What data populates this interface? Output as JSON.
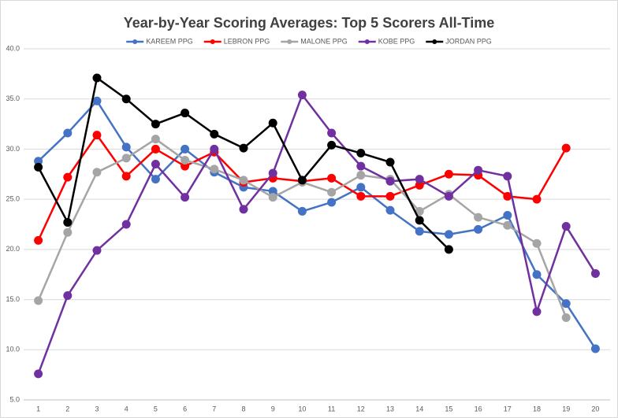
{
  "chart_data": {
    "type": "line",
    "title": "Year-by-Year Scoring Averages: Top 5 Scorers All-Time",
    "categories": [
      "1",
      "2",
      "3",
      "4",
      "5",
      "6",
      "7",
      "8",
      "9",
      "10",
      "11",
      "12",
      "13",
      "14",
      "15",
      "16",
      "17",
      "18",
      "19",
      "20"
    ],
    "series": [
      {
        "name": "KAREEM PPG",
        "color": "#4472c4",
        "values": [
          28.8,
          31.6,
          34.8,
          30.2,
          27.0,
          30.0,
          27.7,
          26.2,
          25.8,
          23.8,
          24.7,
          26.2,
          23.9,
          21.8,
          21.5,
          22.0,
          23.4,
          17.5,
          14.6,
          10.1
        ]
      },
      {
        "name": "LEBRON PPG",
        "color": "#ff0000",
        "values": [
          20.9,
          27.2,
          31.4,
          27.3,
          30.0,
          28.3,
          29.7,
          26.7,
          27.1,
          26.8,
          27.1,
          25.3,
          25.3,
          26.4,
          27.5,
          27.4,
          25.3,
          25.0,
          30.1,
          null
        ]
      },
      {
        "name": "MALONE PPG",
        "color": "#a5a5a5",
        "values": [
          14.9,
          21.7,
          27.7,
          29.1,
          31.0,
          28.9,
          28.0,
          26.9,
          25.2,
          26.7,
          25.7,
          27.4,
          27.0,
          23.8,
          25.5,
          23.2,
          22.4,
          20.6,
          13.2,
          null
        ]
      },
      {
        "name": "KOBE PPG",
        "color": "#7030a0",
        "values": [
          7.6,
          15.4,
          19.9,
          22.5,
          28.5,
          25.2,
          30.0,
          24.0,
          27.6,
          35.4,
          31.6,
          28.3,
          26.8,
          27.0,
          25.3,
          27.9,
          27.3,
          13.8,
          22.3,
          17.6
        ]
      },
      {
        "name": "JORDAN PPG",
        "color": "#000000",
        "values": [
          28.2,
          22.7,
          37.1,
          35.0,
          32.5,
          33.6,
          31.5,
          30.1,
          32.6,
          26.9,
          30.4,
          29.6,
          28.7,
          22.9,
          20.0,
          null,
          null,
          null,
          null,
          null
        ]
      }
    ],
    "ylim": [
      5,
      40
    ],
    "yticks": [
      {
        "value": 5,
        "label": "5.0"
      },
      {
        "value": 10,
        "label": "10.0"
      },
      {
        "value": 15,
        "label": "15.0"
      },
      {
        "value": 20,
        "label": "20.0"
      },
      {
        "value": 25,
        "label": "25.0"
      },
      {
        "value": 30,
        "label": "30.0"
      },
      {
        "value": 35,
        "label": "35.0"
      },
      {
        "value": 40,
        "label": "40.0"
      }
    ],
    "grid": true,
    "legend": "top"
  }
}
